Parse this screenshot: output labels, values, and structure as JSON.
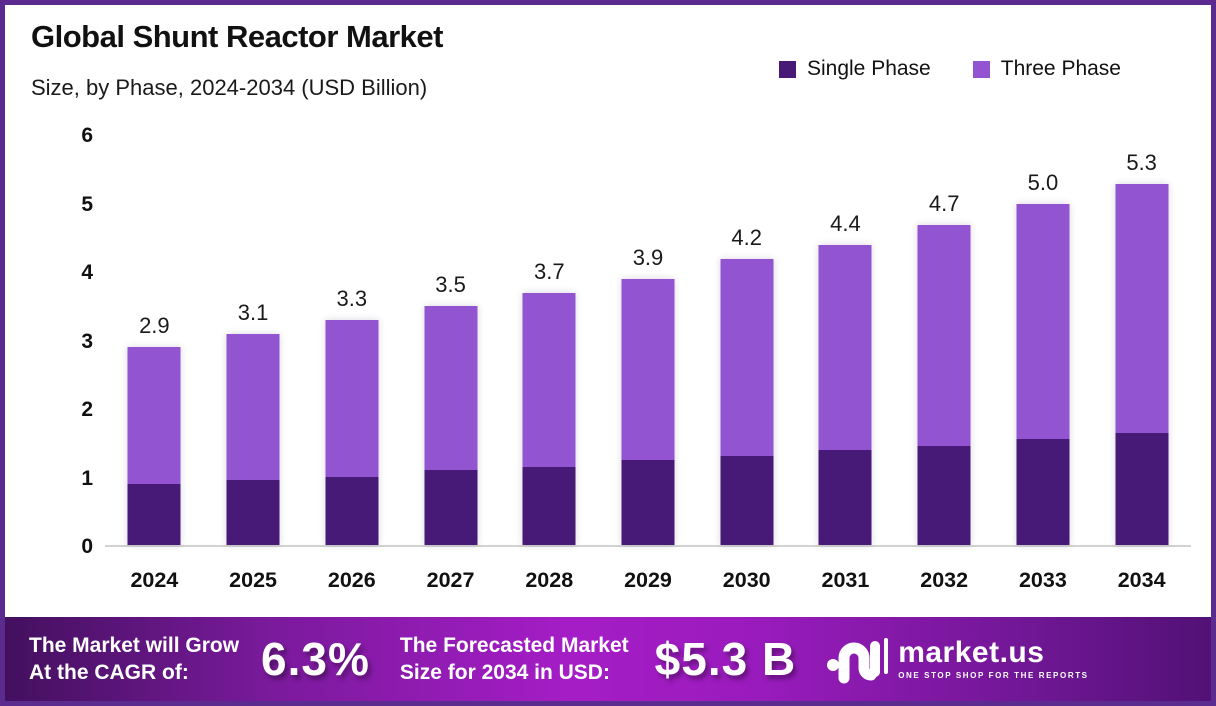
{
  "header": {
    "title": "Global Shunt Reactor Market",
    "subtitle": "Size, by Phase, 2024-2034 (USD Billion)"
  },
  "chart_data": {
    "type": "bar",
    "variant": "stacked",
    "title": "Global Shunt Reactor Market Size, by Phase, 2024-2034 (USD Billion)",
    "categories": [
      "2024",
      "2025",
      "2026",
      "2027",
      "2028",
      "2029",
      "2030",
      "2031",
      "2032",
      "2033",
      "2034"
    ],
    "series": [
      {
        "name": "Single Phase",
        "color": "#481a78",
        "values": [
          0.9,
          0.95,
          1.0,
          1.1,
          1.15,
          1.25,
          1.3,
          1.4,
          1.45,
          1.55,
          1.65
        ]
      },
      {
        "name": "Three Phase",
        "color": "#9254d1",
        "values": [
          2.0,
          2.15,
          2.3,
          2.4,
          2.55,
          2.65,
          2.9,
          3.0,
          3.25,
          3.45,
          3.65
        ]
      }
    ],
    "totals": [
      2.9,
      3.1,
      3.3,
      3.5,
      3.7,
      3.9,
      4.2,
      4.4,
      4.7,
      5.0,
      5.3
    ],
    "total_labels": [
      "2.9",
      "3.1",
      "3.3",
      "3.5",
      "3.7",
      "3.9",
      "4.2",
      "4.4",
      "4.7",
      "5.0",
      "5.3"
    ],
    "xlabel": "",
    "ylabel": "",
    "ylim": [
      0,
      6
    ],
    "y_ticks": [
      0,
      1,
      2,
      3,
      4,
      5,
      6
    ],
    "grid": false,
    "legend_position": "top-right"
  },
  "banner": {
    "growth_line1": "The Market will Grow",
    "growth_line2": "At the CAGR of:",
    "cagr_value": "6.3%",
    "forecast_line1": "The Forecasted Market",
    "forecast_line2": "Size for 2034 in USD:",
    "forecast_value": "$5.3 B",
    "logo_name": "market.us",
    "logo_tagline": "ONE STOP SHOP FOR THE REPORTS"
  },
  "colors": {
    "single_phase": "#481a78",
    "three_phase": "#9254d1",
    "frame_border": "#5b2b8f",
    "banner_center": "#a51dc6",
    "banner_edge": "#43105e",
    "axis_line": "#d2d2d2"
  }
}
